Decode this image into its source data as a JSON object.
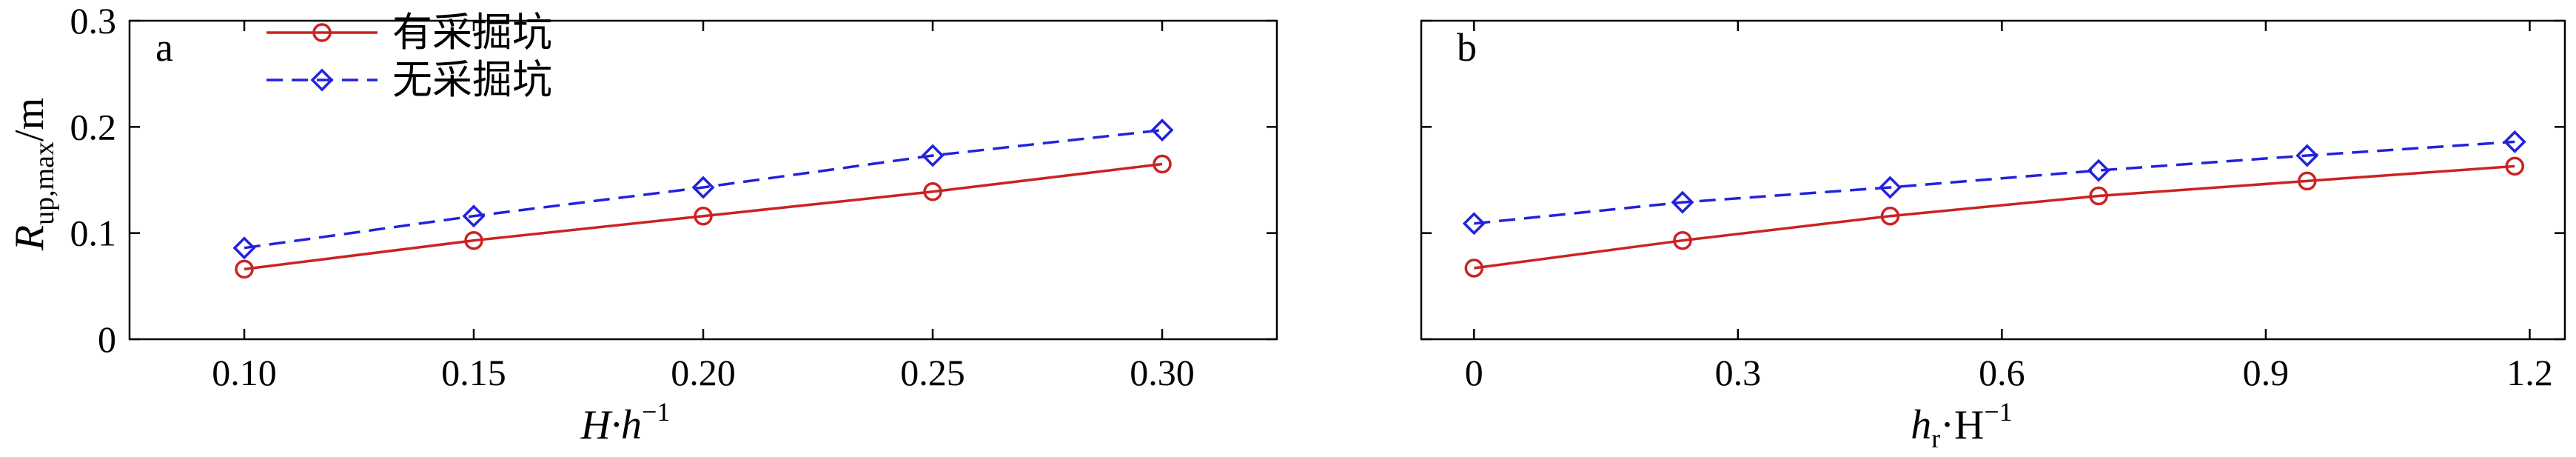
{
  "chart_data": [
    {
      "type": "line",
      "panel_label": "a",
      "xlabel": {
        "main": "H·h",
        "sup": "−1"
      },
      "ylabel": {
        "main": "R",
        "sub": "up,max",
        "tail": "/m"
      },
      "x": [
        0.1,
        0.15,
        0.2,
        0.25,
        0.3
      ],
      "xlim": [
        0.075,
        0.325
      ],
      "ylim": [
        0,
        0.3
      ],
      "xticks": [
        "0.10",
        "0.15",
        "0.20",
        "0.25",
        "0.30"
      ],
      "yticks": [
        "0",
        "0.1",
        "0.2",
        "0.3"
      ],
      "legend_position": "top-left",
      "series": [
        {
          "name": "有采掘坑",
          "color": "#cc2222",
          "marker": "circle",
          "line": "solid",
          "values": [
            0.066,
            0.093,
            0.116,
            0.139,
            0.165
          ]
        },
        {
          "name": "无采掘坑",
          "color": "#2222dd",
          "marker": "diamond",
          "line": "dashed",
          "values": [
            0.086,
            0.116,
            0.143,
            0.173,
            0.197
          ]
        }
      ]
    },
    {
      "type": "line",
      "panel_label": "b",
      "xlabel": {
        "main": "h",
        "sub": "r",
        "mid": "·H",
        "sup": "−1"
      },
      "x": [
        0,
        0.237,
        0.473,
        0.71,
        0.947,
        1.183
      ],
      "xlim": [
        -0.06,
        1.24
      ],
      "ylim": [
        0,
        0.3
      ],
      "xticks": [
        "0",
        "0.3",
        "0.6",
        "0.9",
        "1.2"
      ],
      "series": [
        {
          "name": "有采掘坑",
          "color": "#cc2222",
          "marker": "circle",
          "line": "solid",
          "values": [
            0.067,
            0.093,
            0.116,
            0.135,
            0.149,
            0.163
          ]
        },
        {
          "name": "无采掘坑",
          "color": "#2222dd",
          "marker": "diamond",
          "line": "dashed",
          "values": [
            0.109,
            0.129,
            0.143,
            0.159,
            0.173,
            0.186
          ]
        }
      ]
    }
  ]
}
